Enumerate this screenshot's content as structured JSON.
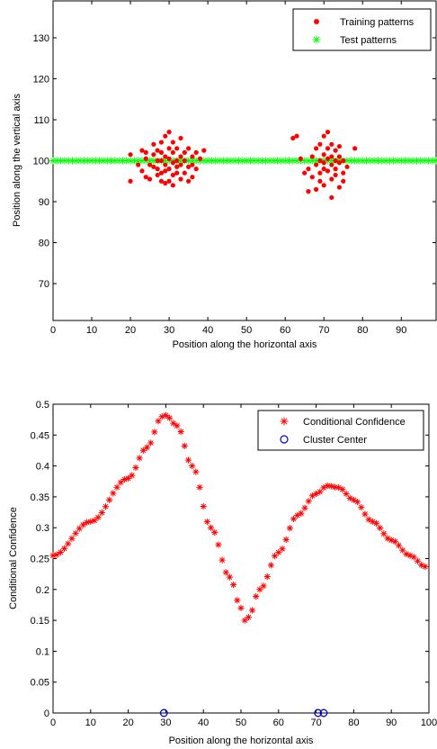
{
  "chart_data": [
    {
      "type": "scatter",
      "xlabel": "Position along the horizontal axis",
      "ylabel": "Position along the vertical axis",
      "xlim": [
        0,
        99
      ],
      "ylim": [
        61,
        139
      ],
      "xticks": [
        "0",
        "10",
        "20",
        "30",
        "40",
        "50",
        "60",
        "70",
        "80",
        "90"
      ],
      "yticks": [
        "70",
        "80",
        "90",
        "100",
        "110",
        "120",
        "130"
      ],
      "legend_position": "top-right",
      "colors": {
        "training": "#ff0000",
        "test": "#00ff00"
      },
      "series": [
        {
          "name": "Training patterns",
          "marker": "dot",
          "points": [
            [
              20,
              101.5
            ],
            [
              20,
              95
            ],
            [
              22,
              99
            ],
            [
              23,
              102.5
            ],
            [
              23,
              97.5
            ],
            [
              24,
              100.5
            ],
            [
              24,
              96
            ],
            [
              24,
              102
            ],
            [
              25,
              99
            ],
            [
              25,
              95.5
            ],
            [
              26,
              101.5
            ],
            [
              26,
              98.5
            ],
            [
              26,
              104
            ],
            [
              27,
              100
            ],
            [
              27,
              96.5
            ],
            [
              27,
              102.5
            ],
            [
              27,
              98
            ],
            [
              28,
              100
            ],
            [
              28,
              95
            ],
            [
              28,
              104.5
            ],
            [
              28,
              97
            ],
            [
              28,
              102
            ],
            [
              29,
              99
            ],
            [
              29,
              94.5
            ],
            [
              29,
              106
            ],
            [
              29,
              101
            ],
            [
              29,
              97.5
            ],
            [
              30,
              100.5
            ],
            [
              30,
              98
            ],
            [
              30,
              103
            ],
            [
              30,
              95
            ],
            [
              30,
              107
            ],
            [
              31,
              99.5
            ],
            [
              31,
              96.5
            ],
            [
              31,
              102
            ],
            [
              31,
              94
            ],
            [
              31,
              104.5
            ],
            [
              32,
              100
            ],
            [
              32,
              97
            ],
            [
              32,
              103
            ],
            [
              32,
              98.5
            ],
            [
              33,
              101
            ],
            [
              33,
              95.5
            ],
            [
              33,
              99
            ],
            [
              33,
              105.5
            ],
            [
              34,
              100
            ],
            [
              34,
              97
            ],
            [
              34,
              102
            ],
            [
              35,
              98.5
            ],
            [
              35,
              95
            ],
            [
              35,
              103
            ],
            [
              36,
              101
            ],
            [
              36,
              99
            ],
            [
              36,
              96
            ],
            [
              37,
              102
            ],
            [
              37,
              98
            ],
            [
              38,
              100.5
            ],
            [
              39,
              102.5
            ],
            [
              62,
              105.5
            ],
            [
              63,
              106
            ],
            [
              64,
              100.5
            ],
            [
              65,
              97
            ],
            [
              66,
              98
            ],
            [
              66,
              92.5
            ],
            [
              67,
              101
            ],
            [
              67,
              96
            ],
            [
              68,
              103
            ],
            [
              68,
              99
            ],
            [
              68,
              93
            ],
            [
              69,
              100
            ],
            [
              69,
              97
            ],
            [
              69,
              104
            ],
            [
              69,
              95
            ],
            [
              70,
              99.5
            ],
            [
              70,
              101.5
            ],
            [
              70,
              98
            ],
            [
              70,
              106
            ],
            [
              70,
              94
            ],
            [
              71,
              100.5
            ],
            [
              71,
              97.5
            ],
            [
              71,
              103
            ],
            [
              71,
              107
            ],
            [
              72,
              99
            ],
            [
              72,
              101
            ],
            [
              72,
              95.5
            ],
            [
              72,
              91
            ],
            [
              72,
              104
            ],
            [
              73,
              100
            ],
            [
              73,
              98
            ],
            [
              73,
              102.5
            ],
            [
              73,
              96.5
            ],
            [
              74,
              99.5
            ],
            [
              74,
              101
            ],
            [
              74,
              93.5
            ],
            [
              74,
              103.5
            ],
            [
              75,
              100
            ],
            [
              75,
              97
            ],
            [
              75,
              95
            ],
            [
              76,
              98.5
            ],
            [
              78,
              103
            ]
          ]
        },
        {
          "name": "Test patterns",
          "marker": "asterisk",
          "y": 100,
          "x_start": 0,
          "x_end": 99,
          "x_step": 1
        }
      ]
    },
    {
      "type": "line",
      "xlabel": "Position along the horizontal axis",
      "ylabel": "Conditional Confidence",
      "xlim": [
        0,
        100
      ],
      "ylim": [
        0,
        0.5
      ],
      "xticks": [
        "0",
        "10",
        "20",
        "30",
        "40",
        "50",
        "60",
        "70",
        "80",
        "90",
        "100"
      ],
      "yticks": [
        "0",
        "0.05",
        "0.1",
        "0.15",
        "0.2",
        "0.25",
        "0.3",
        "0.35",
        "0.4",
        "0.45",
        "0.5"
      ],
      "legend_position": "top-right",
      "colors": {
        "confidence": "#ff0000",
        "center": "#0000cc"
      },
      "series": [
        {
          "name": "Conditional Confidence",
          "marker": "asterisk",
          "x_step": 1,
          "curve_points": [
            [
              0,
              0.255
            ],
            [
              10,
              0.31
            ],
            [
              20,
              0.38
            ],
            [
              25,
              0.43
            ],
            [
              29,
              0.48
            ],
            [
              30,
              0.482
            ],
            [
              33,
              0.465
            ],
            [
              37,
              0.4
            ],
            [
              42,
              0.3
            ],
            [
              47,
              0.22
            ],
            [
              50,
              0.17
            ],
            [
              51,
              0.15
            ],
            [
              52,
              0.155
            ],
            [
              55,
              0.2
            ],
            [
              60,
              0.26
            ],
            [
              65,
              0.32
            ],
            [
              70,
              0.355
            ],
            [
              73,
              0.368
            ],
            [
              76,
              0.365
            ],
            [
              80,
              0.345
            ],
            [
              85,
              0.31
            ],
            [
              90,
              0.28
            ],
            [
              95,
              0.255
            ],
            [
              99,
              0.237
            ]
          ]
        },
        {
          "name": "Cluster Center",
          "marker": "circle",
          "points": [
            [
              29.5,
              0
            ],
            [
              70.5,
              0
            ],
            [
              72,
              0
            ]
          ]
        }
      ]
    }
  ]
}
